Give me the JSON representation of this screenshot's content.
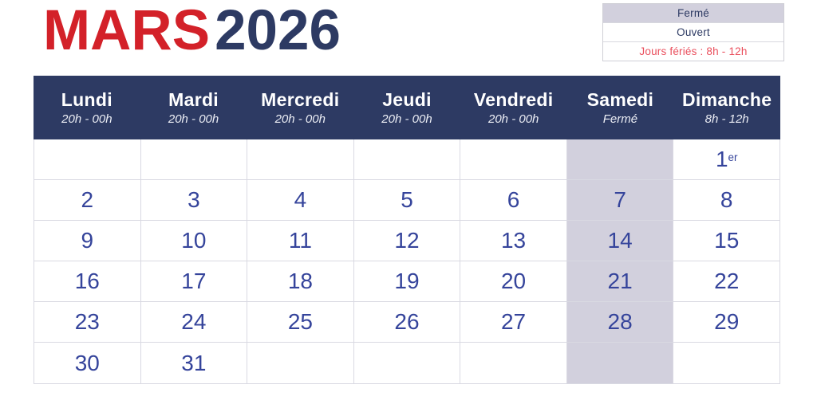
{
  "title": {
    "month": "MARS",
    "year": "2026"
  },
  "legend": {
    "items": [
      {
        "label": "Fermé",
        "type": "closed"
      },
      {
        "label": "Ouvert",
        "type": "open"
      },
      {
        "label": "Jours fériés : 8h - 12h",
        "type": "holiday"
      }
    ]
  },
  "calendar": {
    "days": [
      {
        "name": "Lundi",
        "hours": "20h - 00h"
      },
      {
        "name": "Mardi",
        "hours": "20h - 00h"
      },
      {
        "name": "Mercredi",
        "hours": "20h - 00h"
      },
      {
        "name": "Jeudi",
        "hours": "20h - 00h"
      },
      {
        "name": "Vendredi",
        "hours": "20h - 00h"
      },
      {
        "name": "Samedi",
        "hours": "Fermé"
      },
      {
        "name": "Dimanche",
        "hours": "8h - 12h"
      }
    ],
    "closed_column_index": 5,
    "rows": [
      [
        "",
        "",
        "",
        "",
        "",
        "",
        {
          "n": "1",
          "sup": "er"
        }
      ],
      [
        "2",
        "3",
        "4",
        "5",
        "6",
        "7",
        "8"
      ],
      [
        "9",
        "10",
        "11",
        "12",
        "13",
        "14",
        "15"
      ],
      [
        "16",
        "17",
        "18",
        "19",
        "20",
        "21",
        "22"
      ],
      [
        "23",
        "24",
        "25",
        "26",
        "27",
        "28",
        "29"
      ],
      [
        "30",
        "31",
        "",
        "",
        "",
        "",
        ""
      ]
    ]
  },
  "colors": {
    "header_navy": "#2d3a63",
    "title_red": "#d32129",
    "day_number_blue": "#35449b",
    "closed_bg": "#d2d0dd",
    "holiday_red": "#ea4f5d",
    "grid_border": "#d9d9e2"
  }
}
